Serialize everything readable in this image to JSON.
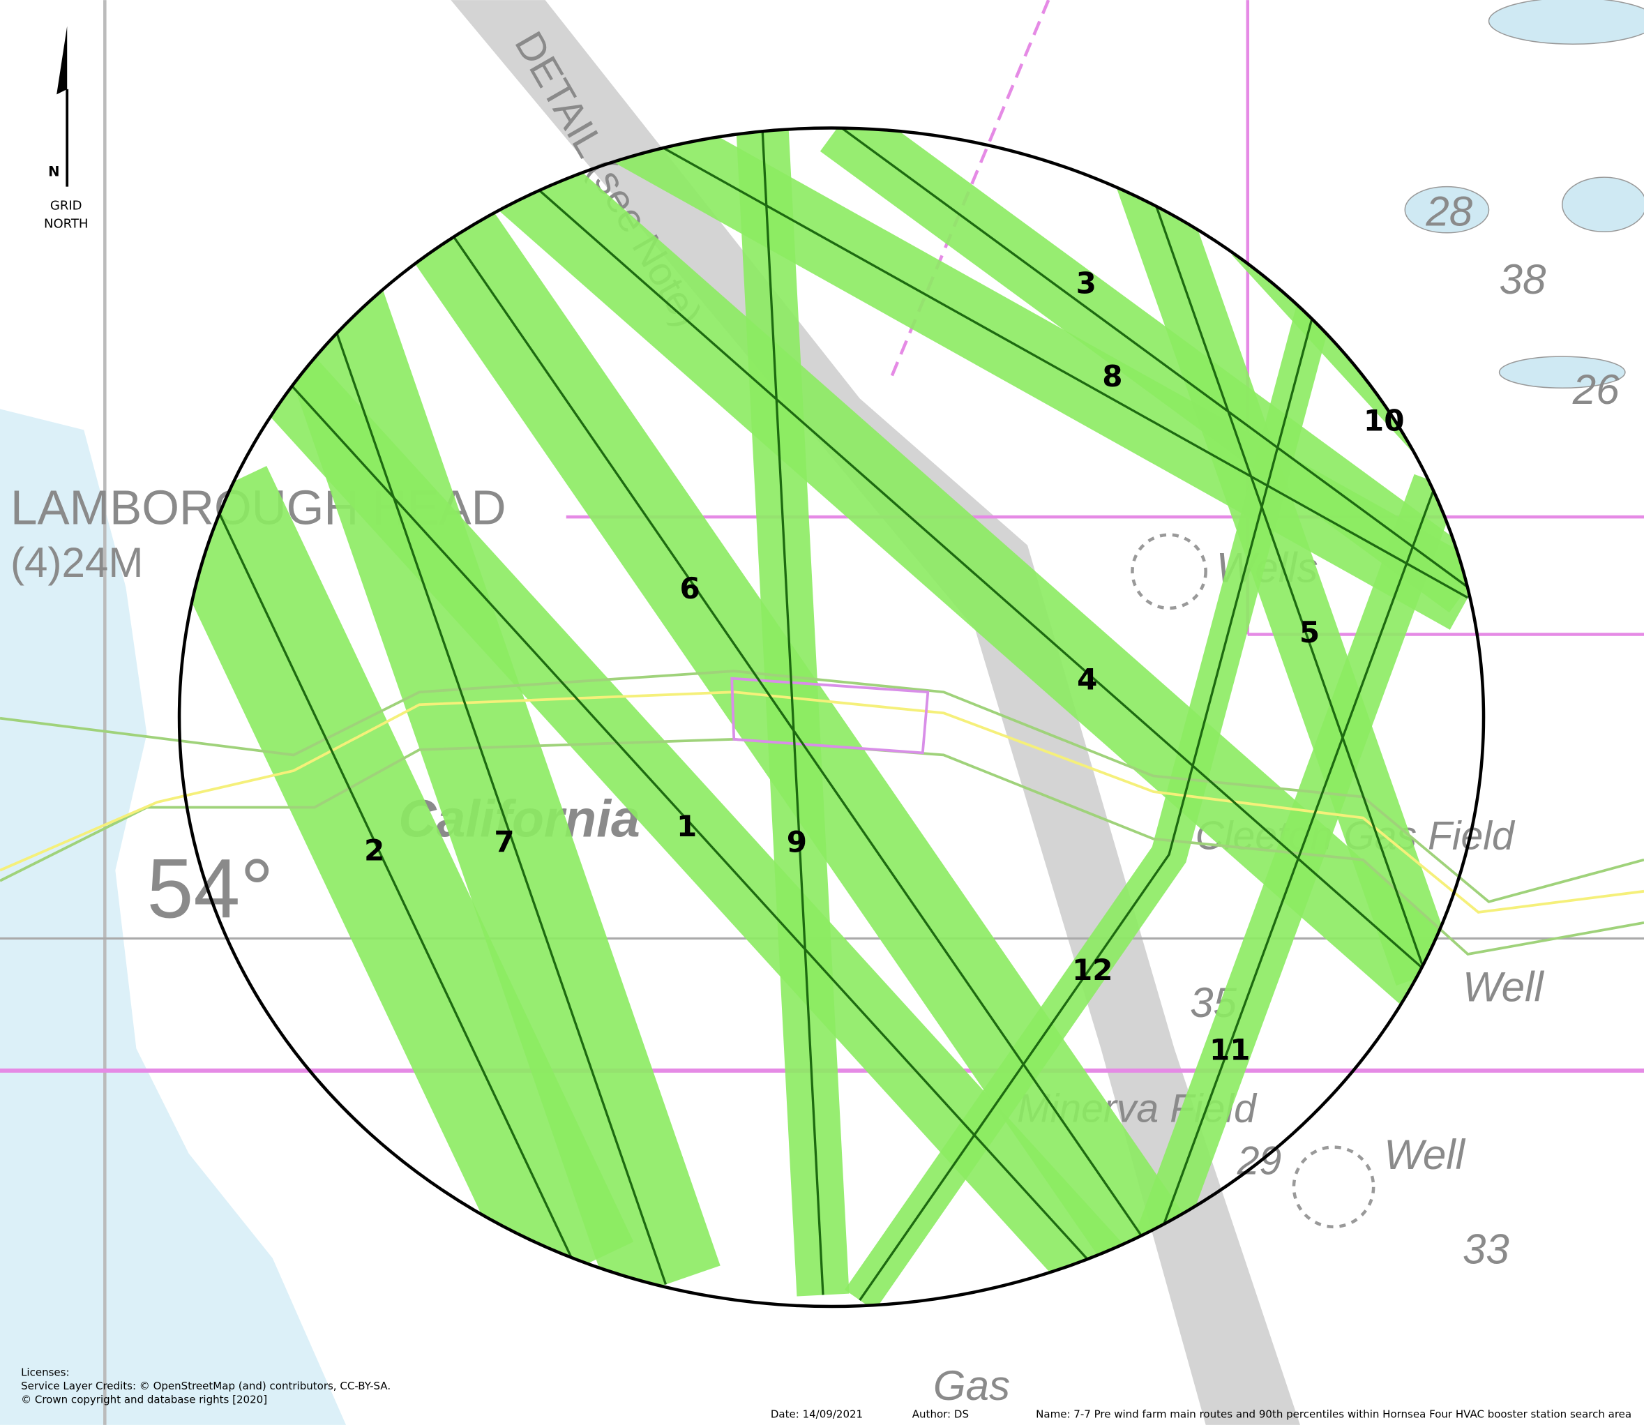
{
  "north_arrow": {
    "letter": "N",
    "caption": [
      "GRID",
      "NORTH"
    ]
  },
  "map_labels": {
    "headland": "LAMBOROUGH HEAD",
    "light": "(4)24M",
    "area": "California",
    "latitude": "54°",
    "wells_1": "Wells",
    "well_2": "Well",
    "well_3": "Well",
    "gas_1": "Gas",
    "gas_field": "Cleeton Gas Field",
    "minerva": "Minerva Field",
    "detail": "DETAIL (see Note)",
    "depth_1": "28",
    "depth_2": "38",
    "depth_3": "26",
    "depth_4": "33",
    "depth_5": "35",
    "depth_6": "29"
  },
  "routes": [
    "1",
    "2",
    "3",
    "4",
    "5",
    "6",
    "7",
    "8",
    "9",
    "10",
    "11",
    "12"
  ],
  "footer": {
    "licenses": [
      "Licenses:",
      "Service Layer Credits: © OpenStreetMap (and) contributors, CC-BY-SA.",
      "© Crown copyright and database rights [2020]"
    ],
    "date": "Date: 14/09/2021",
    "author": "Author: DS",
    "name": "Name: 7-7 Pre wind farm main routes and 90th percentiles within Hornsea Four HVAC booster station search area"
  }
}
